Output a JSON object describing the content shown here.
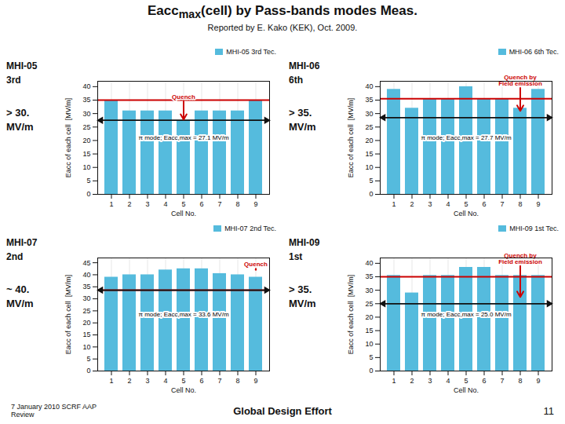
{
  "title": [
    "Eacc",
    "max",
    "(cell) by Pass-bands modes Meas."
  ],
  "subtitle": "Reported by E. Kako (KEK), Oct. 2009.",
  "footer": [
    "7 January 2010  SCRF AAP\nReview",
    "Global Design Effort",
    "11"
  ],
  "chart_data": [
    {
      "type": "bar",
      "title": "MHI-05",
      "subtitle": "3rd",
      "performance": [
        "> 30.",
        "MV/m"
      ],
      "categories": [
        1,
        2,
        3,
        4,
        5,
        6,
        7,
        8,
        9
      ],
      "series": [
        {
          "name": "MHI-05 3rd Tec.",
          "color": "#55bbdd",
          "values": [
            35.0,
            31.0,
            31.0,
            31.0,
            27.2,
            31.0,
            31.0,
            31.0,
            35.0
          ]
        }
      ],
      "xlabel": "Cell No.",
      "ylabel": "Eacc of each cell  [MV/m]",
      "ylim": [
        0,
        42
      ],
      "yticks": [
        0,
        5,
        10,
        15,
        20,
        25,
        30,
        35,
        40
      ],
      "grid": "x",
      "legend": "upper right",
      "annotations": [
        {
          "type": "hline",
          "y": 35.0,
          "color": "#cc0000"
        },
        {
          "type": "double_arrow",
          "y": 27.5,
          "color": "#111111"
        },
        {
          "type": "arrow",
          "text": "Quench",
          "x": 5,
          "y_from": 34.5,
          "y_to": 27.8,
          "color": "#cc0000"
        },
        {
          "type": "box",
          "text": "π mode; Eacc,max = 27.1 MV/m"
        }
      ]
    },
    {
      "type": "bar",
      "title": "MHI-06",
      "subtitle": "6th",
      "performance": [
        "> 35.",
        "MV/m"
      ],
      "categories": [
        1,
        2,
        3,
        4,
        5,
        6,
        7,
        8,
        9
      ],
      "series": [
        {
          "name": "MHI-06 6th Tec.",
          "color": "#55bbdd",
          "values": [
            39.0,
            32.0,
            35.5,
            35.5,
            40.0,
            35.5,
            35.5,
            32.0,
            39.0
          ]
        }
      ],
      "xlabel": "Cell No.",
      "ylabel": "Eacc of each cell  [MV/m]",
      "ylim": [
        0,
        42
      ],
      "yticks": [
        0,
        5,
        10,
        15,
        20,
        25,
        30,
        35,
        40
      ],
      "grid": "x",
      "legend": "upper right",
      "annotations": [
        {
          "type": "hline",
          "y": 35.5,
          "color": "#cc0000"
        },
        {
          "type": "double_arrow",
          "y": 28.5,
          "color": "#111111"
        },
        {
          "type": "arrow",
          "text": "Quench by\nField emission",
          "x": 8,
          "y_from": 39.5,
          "y_to": 31.0,
          "color": "#cc0000"
        },
        {
          "type": "box",
          "text": "π mode; Eacc,max = 27.7 MV/m"
        }
      ]
    },
    {
      "type": "bar",
      "title": "MHI-07",
      "subtitle": "2nd",
      "performance": [
        "~ 40.",
        "MV/m"
      ],
      "categories": [
        1,
        2,
        3,
        4,
        5,
        6,
        7,
        8,
        9
      ],
      "series": [
        {
          "name": "MHI-07 2nd Tec.",
          "color": "#55bbdd",
          "values": [
            39.0,
            40.0,
            40.0,
            42.0,
            42.5,
            42.5,
            40.5,
            40.0,
            39.0
          ]
        }
      ],
      "xlabel": "Cell No.",
      "ylabel": "Eacc of each cell  [MV/m]",
      "ylim": [
        0,
        47
      ],
      "yticks": [
        0,
        5,
        10,
        15,
        20,
        25,
        30,
        35,
        40,
        45
      ],
      "grid": "x",
      "legend": "upper right",
      "annotations": [
        {
          "type": "hline",
          "y": 33.6,
          "color": "#cc0000"
        },
        {
          "type": "double_arrow",
          "y": 33.6,
          "color": "#111111"
        },
        {
          "type": "arrow",
          "text": "Quench",
          "x": 9,
          "y_from": 42.5,
          "y_to": 42.0,
          "color": "#cc0000"
        },
        {
          "type": "box",
          "text": "π mode; Eacc,max = 33.6 MV/m"
        }
      ]
    },
    {
      "type": "bar",
      "title": "MHI-09",
      "subtitle": "1st",
      "performance": [
        "> 35.",
        "MV/m"
      ],
      "categories": [
        1,
        2,
        3,
        4,
        5,
        6,
        7,
        8,
        9
      ],
      "series": [
        {
          "name": "MHI-09 1st Tec.",
          "color": "#55bbdd",
          "values": [
            35.5,
            29.0,
            35.5,
            35.5,
            38.5,
            38.5,
            35.5,
            35.5,
            35.5
          ]
        }
      ],
      "xlabel": "Cell No.",
      "ylabel": "Eacc of each cell  [MV/m]",
      "ylim": [
        0,
        42
      ],
      "yticks": [
        0,
        5,
        10,
        15,
        20,
        25,
        30,
        35,
        40
      ],
      "grid": "x",
      "legend": "upper right",
      "annotations": [
        {
          "type": "hline",
          "y": 35.0,
          "color": "#cc0000"
        },
        {
          "type": "double_arrow",
          "y": 25.0,
          "color": "#111111"
        },
        {
          "type": "arrow",
          "text": "Quench by\nField emission",
          "x": 8,
          "y_from": 39.0,
          "y_to": 27.5,
          "color": "#cc0000"
        },
        {
          "type": "box",
          "text": "π mode; Eacc,max = 25.0 MV/m"
        }
      ]
    }
  ]
}
